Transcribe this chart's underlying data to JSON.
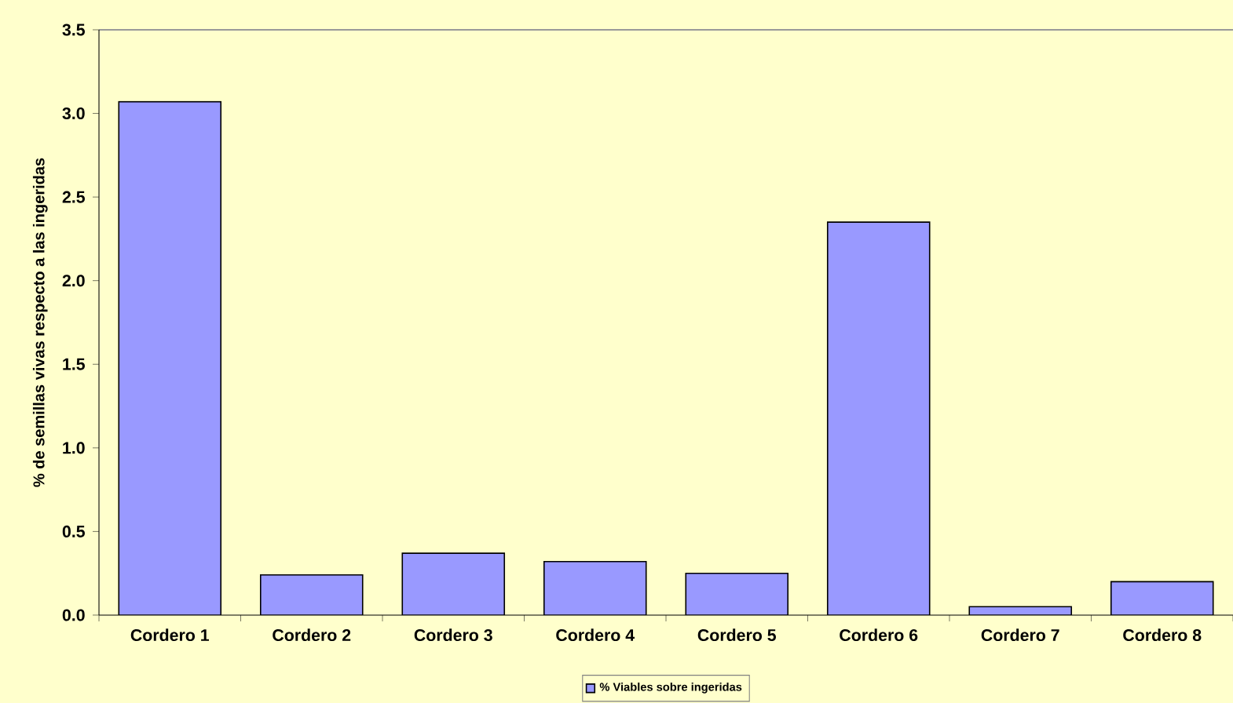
{
  "chart_data": {
    "type": "bar",
    "ylabel": "% de semillas vivas respecto a las ingeridas",
    "categories": [
      "Cordero 1",
      "Cordero 2",
      "Cordero 3",
      "Cordero 4",
      "Cordero 5",
      "Cordero 6",
      "Cordero 7",
      "Cordero 8"
    ],
    "series": [
      {
        "name": "% Viables sobre ingeridas",
        "color": "#9999ff",
        "values": [
          3.07,
          0.24,
          0.37,
          0.32,
          0.25,
          2.35,
          0.05,
          0.2
        ]
      }
    ],
    "ylim": [
      0,
      3.5
    ],
    "yticks": [
      {
        "value": 0,
        "label": "0.0"
      },
      {
        "value": 0.5,
        "label": "0.5"
      },
      {
        "value": 1,
        "label": "1.0"
      },
      {
        "value": 1.5,
        "label": "1.5"
      },
      {
        "value": 2,
        "label": "2.0"
      },
      {
        "value": 2.5,
        "label": "2.5"
      },
      {
        "value": 3,
        "label": "3.0"
      },
      {
        "value": 3.5,
        "label": "3.5"
      }
    ],
    "legend": "bottom"
  }
}
